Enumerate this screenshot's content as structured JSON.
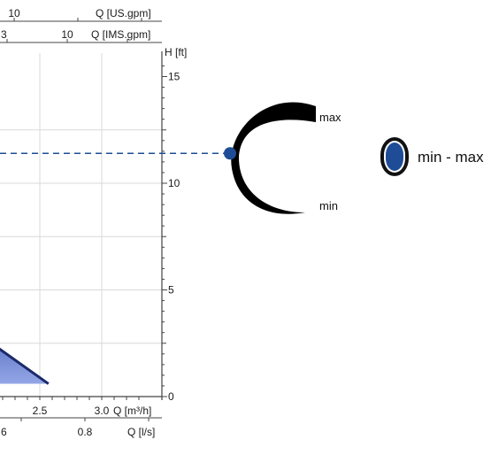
{
  "colors": {
    "accent": "#1f4c96",
    "curve_fill_top": "#2f49a8",
    "curve_fill_bottom": "#93a6e6",
    "grid": "#d9d9d9",
    "axis": "#444444"
  },
  "dial": {
    "max_label": "max",
    "min_label": "min"
  },
  "legend": {
    "icon": "oval-min-max-icon",
    "label": "min - max"
  },
  "chart_data": {
    "type": "area",
    "y_ticks": [
      "0",
      "5",
      "10",
      "15"
    ],
    "y_values": [
      0,
      5,
      10,
      15
    ],
    "ylim": [
      0,
      15.5
    ],
    "y_unit_label": "H [ft]",
    "x_axes": [
      {
        "label": "Q [US.gpm]",
        "ticks": [
          "10"
        ],
        "tick_values": [
          10
        ],
        "partial_left_text": ""
      },
      {
        "label": "Q [IMS.gpm]",
        "ticks": [
          "10"
        ],
        "tick_values": [
          10
        ],
        "partial_left_text": "3"
      },
      {
        "label": "Q [m³/h]",
        "ticks": [
          "2.5",
          "3.0"
        ],
        "tick_values": [
          2.5,
          3.0
        ],
        "partial_left_text": ""
      },
      {
        "label": "Q [l/s]",
        "ticks": [
          "0.8"
        ],
        "tick_values": [
          0.8
        ],
        "partial_left_text": "6"
      }
    ],
    "operating_line_H": 11.4,
    "curve": {
      "series": [
        {
          "points": [
            {
              "Q_m3h": 1.6,
              "H_ft": 4.6
            },
            {
              "Q_m3h": 2.57,
              "H_ft": 0.6
            }
          ]
        }
      ]
    },
    "grid": true
  }
}
